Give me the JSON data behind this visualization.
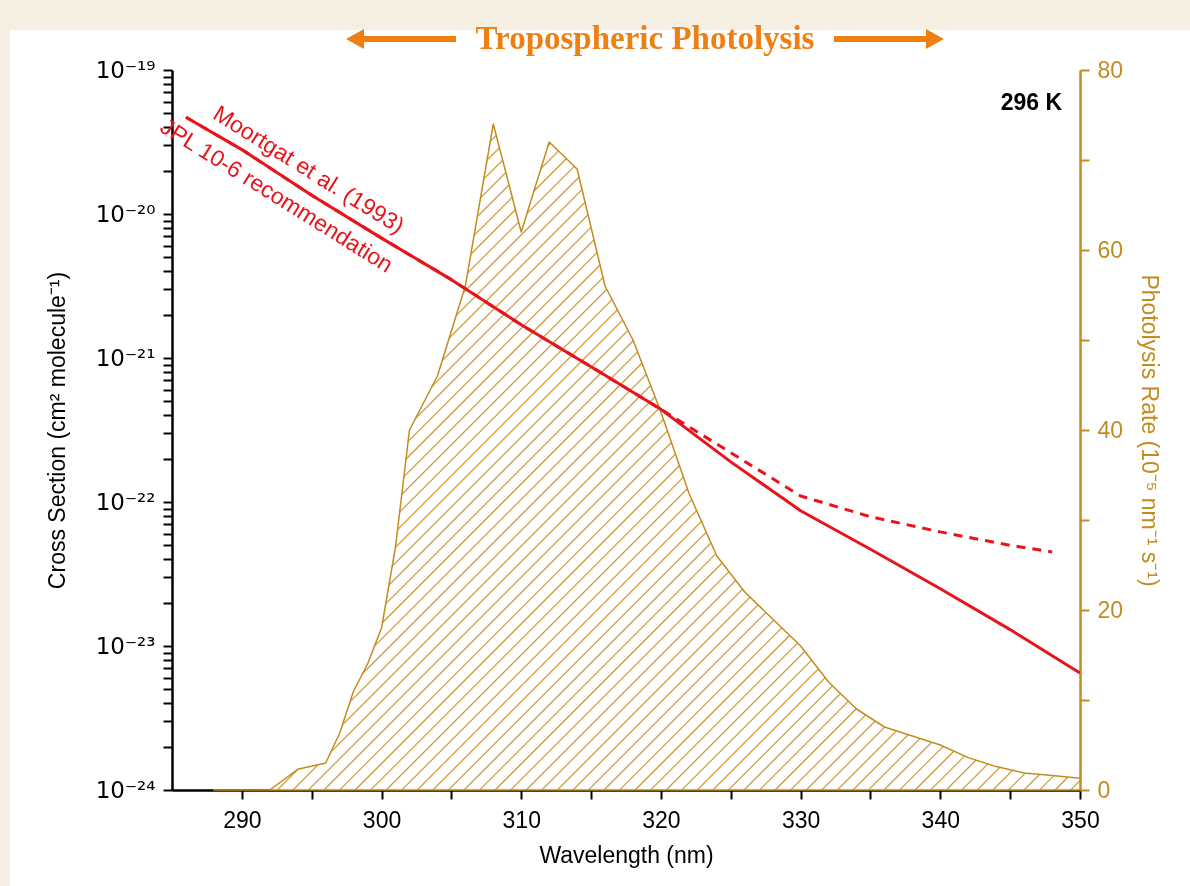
{
  "chart_data": {
    "type": "line",
    "xlabel": "Wavelength (nm)",
    "ylabel": "Cross Section (cm² molecule⁻¹)",
    "y2label": "Photolysis Rate (10⁻⁵ nm⁻¹ s⁻¹)",
    "log": "y",
    "annotations": [
      "Tropospheric Photolysis",
      "296 K"
    ],
    "xlim": [
      285,
      350
    ],
    "xticks": [
      290,
      {
        "value": 295,
        "label": null
      },
      300,
      {
        "value": 305,
        "label": null
      },
      310,
      {
        "value": 315,
        "label": null
      },
      320,
      {
        "value": 325,
        "label": null
      },
      330,
      {
        "value": 335,
        "label": null
      },
      340,
      {
        "value": 345,
        "label": null
      },
      350
    ],
    "ylim": [
      1e-24,
      1e-19
    ],
    "yticks": [
      {
        "value": 1e-24,
        "label": "10⁻²⁴"
      },
      {
        "value": 2e-24,
        "label": null
      },
      {
        "value": 3e-24,
        "label": null
      },
      {
        "value": 4e-24,
        "label": null
      },
      {
        "value": 5e-24,
        "label": null
      },
      {
        "value": 6e-24,
        "label": null
      },
      {
        "value": 7e-24,
        "label": null
      },
      {
        "value": 8e-24,
        "label": null
      },
      {
        "value": 9e-24,
        "label": null
      },
      {
        "value": 1e-23,
        "label": "10⁻²³"
      },
      {
        "value": 2e-23,
        "label": null
      },
      {
        "value": 3e-23,
        "label": null
      },
      {
        "value": 4e-23,
        "label": null
      },
      {
        "value": 5e-23,
        "label": null
      },
      {
        "value": 6e-23,
        "label": null
      },
      {
        "value": 7e-23,
        "label": null
      },
      {
        "value": 8e-23,
        "label": null
      },
      {
        "value": 9e-23,
        "label": null
      },
      {
        "value": 1e-22,
        "label": "10⁻²²"
      },
      {
        "value": 2e-22,
        "label": null
      },
      {
        "value": 3e-22,
        "label": null
      },
      {
        "value": 4e-22,
        "label": null
      },
      {
        "value": 5e-22,
        "label": null
      },
      {
        "value": 6e-22,
        "label": null
      },
      {
        "value": 7e-22,
        "label": null
      },
      {
        "value": 8e-22,
        "label": null
      },
      {
        "value": 9e-22,
        "label": null
      },
      {
        "value": 1e-21,
        "label": "10⁻²¹"
      },
      {
        "value": 2e-21,
        "label": null
      },
      {
        "value": 3e-21,
        "label": null
      },
      {
        "value": 4e-21,
        "label": null
      },
      {
        "value": 5e-21,
        "label": null
      },
      {
        "value": 6e-21,
        "label": null
      },
      {
        "value": 7e-21,
        "label": null
      },
      {
        "value": 8e-21,
        "label": null
      },
      {
        "value": 9e-21,
        "label": null
      },
      {
        "value": 1e-20,
        "label": "10⁻²⁰"
      },
      {
        "value": 2e-20,
        "label": null
      },
      {
        "value": 3e-20,
        "label": null
      },
      {
        "value": 4e-20,
        "label": null
      },
      {
        "value": 5e-20,
        "label": null
      },
      {
        "value": 6e-20,
        "label": null
      },
      {
        "value": 7e-20,
        "label": null
      },
      {
        "value": 8e-20,
        "label": null
      },
      {
        "value": 9e-20,
        "label": null
      },
      {
        "value": 1e-19,
        "label": "10⁻¹⁹"
      }
    ],
    "y2lim": [
      0,
      80
    ],
    "y2ticks": [
      0,
      {
        "value": 10,
        "label": null
      },
      20,
      {
        "value": 30,
        "label": null
      },
      40,
      {
        "value": 50,
        "label": null
      },
      60,
      {
        "value": 70,
        "label": null
      },
      80
    ],
    "series": [
      {
        "type": "area",
        "axis": "y2",
        "color": "#c38c1e",
        "x": [
          288,
          292,
          294,
          296,
          297,
          298,
          299,
          300,
          301,
          302,
          304,
          306,
          308,
          310,
          312,
          314,
          316,
          318,
          320,
          322,
          324,
          326,
          328,
          330,
          332,
          334,
          336,
          338,
          340,
          342,
          344,
          346,
          348,
          350
        ],
        "values": [
          0,
          0,
          2.3,
          3,
          6.3,
          11,
          14,
          18,
          27,
          40,
          46,
          56,
          74,
          62,
          72,
          69,
          56,
          50,
          42,
          33,
          26,
          22,
          19,
          16,
          12,
          9,
          7,
          6,
          5,
          3.6,
          2.6,
          1.9,
          1.6,
          1.3
        ]
      },
      {
        "name": "JPL 10-6 recommendation",
        "color": "#e8141c",
        "line_style": "solid",
        "x": [
          286,
          290,
          295,
          300,
          305,
          310,
          315,
          320,
          325,
          330,
          335,
          340,
          345,
          350
        ],
        "values": [
          4.7e-20,
          2.8e-20,
          1.35e-20,
          6.8e-21,
          3.5e-21,
          1.7e-21,
          8.7e-22,
          4.4e-22,
          1.9e-22,
          8.7e-23,
          4.7e-23,
          2.5e-23,
          1.3e-23,
          6.5e-24
        ]
      },
      {
        "name": "Moortgat et al. (1993)",
        "color": "#e8141c",
        "line_style": "dashed",
        "x": [
          286,
          290,
          295,
          300,
          305,
          310,
          315,
          320,
          325,
          330,
          335,
          340,
          345,
          348
        ],
        "values": [
          4.7e-20,
          2.8e-20,
          1.35e-20,
          6.8e-21,
          3.5e-21,
          1.7e-21,
          8.7e-22,
          4.4e-22,
          2.2e-22,
          1.1e-22,
          7.9e-23,
          6.2e-23,
          5e-23,
          4.5e-23
        ]
      }
    ]
  }
}
